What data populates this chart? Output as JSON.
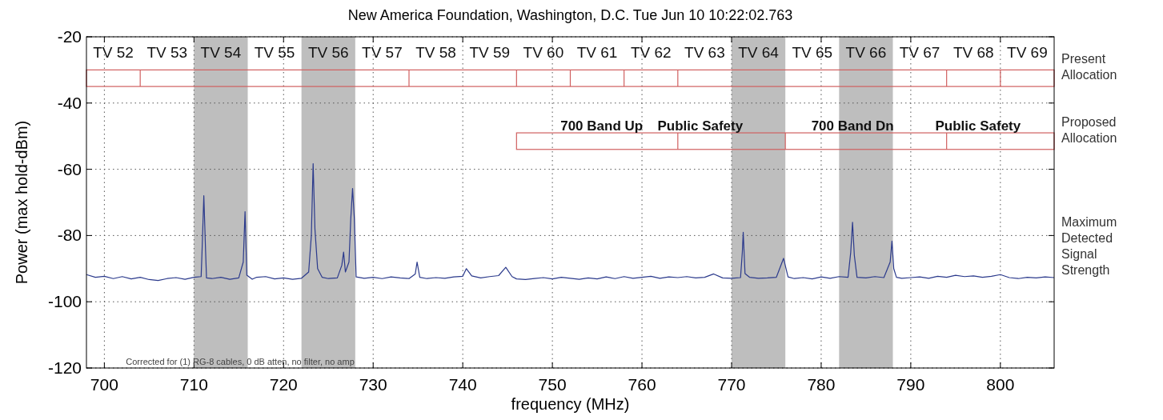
{
  "chart_data": {
    "type": "line",
    "title": "New America Foundation, Washington, D.C. Tue Jun 10 10:22:02.763",
    "xlabel": "frequency (MHz)",
    "ylabel": "Power (max hold-dBm)",
    "xlim": [
      698,
      806
    ],
    "xticks": [
      700,
      710,
      720,
      730,
      740,
      750,
      760,
      770,
      780,
      790,
      800
    ],
    "ylim": [
      -120,
      -20
    ],
    "yticks": [
      -120,
      -100,
      -80,
      -60,
      -40,
      -20
    ],
    "grid": true,
    "line_style": "solid",
    "marker": "none",
    "bands": [
      {
        "axis": "x",
        "from": 710,
        "to": 716,
        "color": "#bebebe"
      },
      {
        "axis": "x",
        "from": 722,
        "to": 728,
        "color": "#bebebe"
      },
      {
        "axis": "x",
        "from": 770,
        "to": 776,
        "color": "#bebebe"
      },
      {
        "axis": "x",
        "from": 782,
        "to": 788,
        "color": "#bebebe"
      }
    ],
    "annotations": [
      "Corrected for (1) RG-8 cables, 0 dB atten, no filter, no amp",
      "Present Allocation",
      "Proposed Allocation",
      "Maximum Detected Signal Strength",
      "TV 52",
      "TV 53",
      "TV 54",
      "TV 55",
      "TV 56",
      "TV 57",
      "TV 58",
      "TV 59",
      "TV 60",
      "TV 61",
      "TV 62",
      "TV 63",
      "TV 64",
      "TV 65",
      "TV 66",
      "TV 67",
      "TV 68",
      "TV 69",
      "700 Band Up",
      "Public Safety",
      "700 Band Dn",
      "Public Safety"
    ],
    "series": [
      {
        "color": "#2b3a8c",
        "x": [
          698,
          699,
          700,
          701,
          702,
          703,
          704,
          705,
          706,
          707,
          708,
          709,
          710,
          710.8,
          710.9,
          711.1,
          711.3,
          711.4,
          712,
          713,
          714,
          715,
          715.5,
          715.7,
          715.9,
          716.5,
          717,
          718,
          719,
          720,
          721,
          722,
          722.8,
          723.1,
          723.3,
          723.5,
          723.8,
          724.3,
          725,
          726,
          726.5,
          726.7,
          726.9,
          727.3,
          727.5,
          727.7,
          727.9,
          728.1,
          729,
          730,
          731,
          732,
          733,
          734,
          734.7,
          734.9,
          735.2,
          736,
          737,
          738,
          739,
          740,
          740.4,
          741,
          742,
          743,
          744,
          744.8,
          745.5,
          746,
          747,
          748,
          749,
          750,
          751,
          752,
          753,
          754,
          755,
          756,
          757,
          758,
          759,
          760,
          761,
          762,
          763,
          764,
          765,
          766,
          767,
          768,
          769,
          770,
          771,
          771.2,
          771.3,
          771.5,
          772,
          773,
          774,
          775,
          775.8,
          776.3,
          777,
          778,
          779,
          780,
          781,
          782,
          783,
          783.3,
          783.5,
          783.7,
          784,
          785,
          786,
          787,
          787.7,
          787.9,
          788.1,
          788.4,
          789,
          790,
          791,
          792,
          793,
          794,
          795,
          796,
          797,
          798,
          799,
          800,
          801,
          802,
          803,
          804,
          805,
          806
        ],
        "values": [
          -91.8,
          -92.6,
          -92.3,
          -93.0,
          -92.4,
          -93.1,
          -92.6,
          -93.3,
          -93.6,
          -93.0,
          -92.7,
          -93.2,
          -92.6,
          -92.4,
          -85,
          -68,
          -85,
          -92.8,
          -93.0,
          -92.6,
          -93.2,
          -92.8,
          -88,
          -72.8,
          -92,
          -93.2,
          -92.6,
          -92.4,
          -93.1,
          -92.8,
          -93.2,
          -92.9,
          -91,
          -80,
          -58.3,
          -78,
          -90,
          -92.6,
          -93.0,
          -92.8,
          -89,
          -85,
          -91,
          -88,
          -75,
          -65.8,
          -75,
          -92.5,
          -92.9,
          -92.6,
          -93.0,
          -92.5,
          -92.8,
          -93.0,
          -91.6,
          -88,
          -92.6,
          -93.0,
          -92.7,
          -92.9,
          -92.5,
          -92.3,
          -90,
          -92.2,
          -92.8,
          -92.4,
          -92.1,
          -89.6,
          -92.4,
          -93.1,
          -93.3,
          -93.0,
          -92.7,
          -93.1,
          -92.6,
          -92.9,
          -93.2,
          -92.8,
          -93.1,
          -92.5,
          -93.0,
          -92.4,
          -92.9,
          -92.6,
          -92.3,
          -92.9,
          -92.5,
          -92.7,
          -92.4,
          -92.8,
          -92.6,
          -91.6,
          -92.8,
          -92.9,
          -92.7,
          -85,
          -79,
          -91.5,
          -92.6,
          -92.9,
          -92.8,
          -92.6,
          -86.9,
          -92.5,
          -93.0,
          -92.7,
          -93.1,
          -92.5,
          -92.9,
          -92.4,
          -92.6,
          -85,
          -76,
          -86,
          -92.6,
          -92.8,
          -92.4,
          -92.7,
          -88,
          -81.7,
          -90,
          -92.6,
          -92.9,
          -92.7,
          -92.5,
          -92.9,
          -92.3,
          -92.6,
          -92.0,
          -92.4,
          -92.2,
          -92.6,
          -92.3,
          -91.8,
          -92.7,
          -93.0,
          -92.6,
          -92.8,
          -92.5,
          -92.7
        ]
      }
    ]
  }
}
